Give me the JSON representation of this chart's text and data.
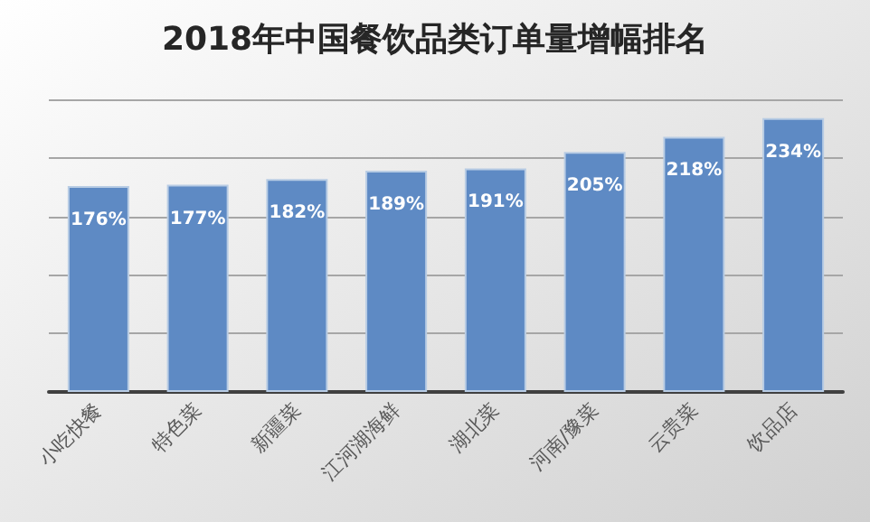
{
  "chart_data": {
    "type": "bar",
    "title": "2018年中国餐饮品类订单量增幅排名",
    "categories": [
      "小吃快餐",
      "特色菜",
      "新疆菜",
      "江河湖海鲜",
      "湖北菜",
      "河南/豫菜",
      "云贵菜",
      "饮品店"
    ],
    "values": [
      176,
      177,
      182,
      189,
      191,
      205,
      218,
      234
    ],
    "value_labels": [
      "176%",
      "177%",
      "182%",
      "189%",
      "191%",
      "205%",
      "218%",
      "234%"
    ],
    "color": "#5e8ac4",
    "ylim": [
      0,
      250
    ],
    "yticks": [
      {
        "value": 0,
        "label": null
      },
      {
        "value": 50,
        "label": null
      },
      {
        "value": 100,
        "label": null
      },
      {
        "value": 150,
        "label": null
      },
      {
        "value": 200,
        "label": null
      },
      {
        "value": 250,
        "label": null
      }
    ],
    "tick_labels": "x",
    "grid": "y"
  }
}
